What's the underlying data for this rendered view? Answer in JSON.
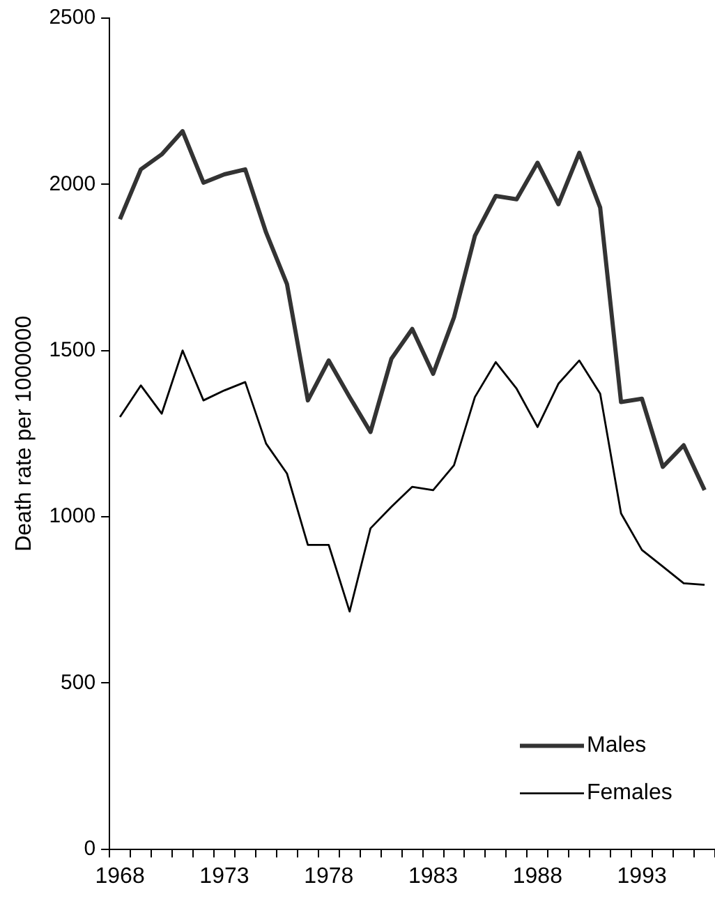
{
  "chart_data": {
    "type": "line",
    "ylabel": "Death rate per 1000000",
    "categories": [
      "1968",
      null,
      null,
      null,
      null,
      "1973",
      null,
      null,
      null,
      null,
      "1978",
      null,
      null,
      null,
      null,
      "1983",
      null,
      null,
      null,
      null,
      "1988",
      null,
      null,
      null,
      null,
      "1993",
      null,
      null,
      null
    ],
    "series": [
      {
        "name": "Males",
        "color": "#333333",
        "values": [
          1895,
          2045,
          2090,
          2160,
          2005,
          2030,
          2045,
          1855,
          1700,
          1350,
          1470,
          1360,
          1255,
          1475,
          1565,
          1430,
          1600,
          1845,
          1965,
          1955,
          2065,
          1940,
          2095,
          1930,
          1345,
          1355,
          1150,
          1215,
          1080
        ]
      },
      {
        "name": "Females",
        "color": "#000000",
        "values": [
          1300,
          1395,
          1310,
          1500,
          1350,
          1380,
          1405,
          1220,
          1130,
          915,
          915,
          715,
          965,
          1030,
          1090,
          1080,
          1155,
          1360,
          1465,
          1385,
          1270,
          1400,
          1470,
          1370,
          1010,
          900,
          850,
          800,
          795
        ]
      }
    ],
    "ylim": [
      0,
      2500
    ],
    "yticks": [
      0,
      500,
      1000,
      1500,
      2000,
      2500
    ],
    "grid": false,
    "legend": "bottom right",
    "marker": "none",
    "line_style": "solid"
  }
}
